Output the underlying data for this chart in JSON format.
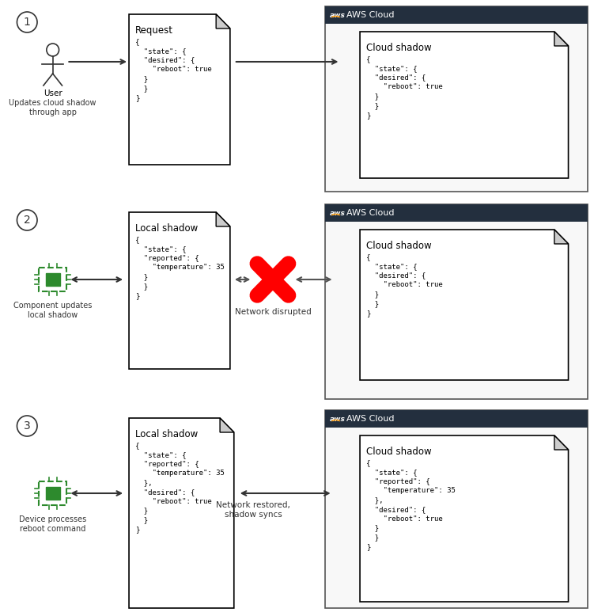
{
  "bg_color": "#ffffff",
  "aws_banner_color": "#232f3e",
  "step1": {
    "number": 1,
    "user_label": "User",
    "user_sublabel": "Updates cloud shadow\nthrough app",
    "doc1_title": "Request",
    "doc1_content": "{\n  \"state\": {\n  \"desired\": {\n    \"reboot\": true\n  }\n  }\n}",
    "doc2_title": "Cloud shadow",
    "doc2_content": "{\n  \"state\": {\n  \"desired\": {\n    \"reboot\": true\n  }\n  }\n}",
    "aws_label": "AWS Cloud"
  },
  "step2": {
    "number": 2,
    "device_label": "Component updates\nlocal shadow",
    "doc1_title": "Local shadow",
    "doc1_content": "{\n  \"state\": {\n  \"reported\": {\n    \"temperature\": 35\n  }\n  }\n}",
    "doc2_title": "Cloud shadow",
    "doc2_content": "{\n  \"state\": {\n  \"desired\": {\n    \"reboot\": true\n  }\n  }\n}",
    "aws_label": "AWS Cloud",
    "disrupted_label": "Network disrupted"
  },
  "step3": {
    "number": 3,
    "device_label": "Device processes\nreboot command",
    "doc1_title": "Local shadow",
    "doc1_content": "{\n  \"state\": {\n  \"reported\": {\n    \"temperature\": 35\n  },\n  \"desired\": {\n    \"reboot\": true\n  }\n  }\n}",
    "doc2_title": "Cloud shadow",
    "doc2_content": "{\n  \"state\": {\n  \"reported\": {\n    \"temperature\": 35\n  },\n  \"desired\": {\n    \"reboot\": true\n  }\n  }\n}",
    "aws_label": "AWS Cloud",
    "sync_label": "Network restored,\nshadow syncs"
  }
}
